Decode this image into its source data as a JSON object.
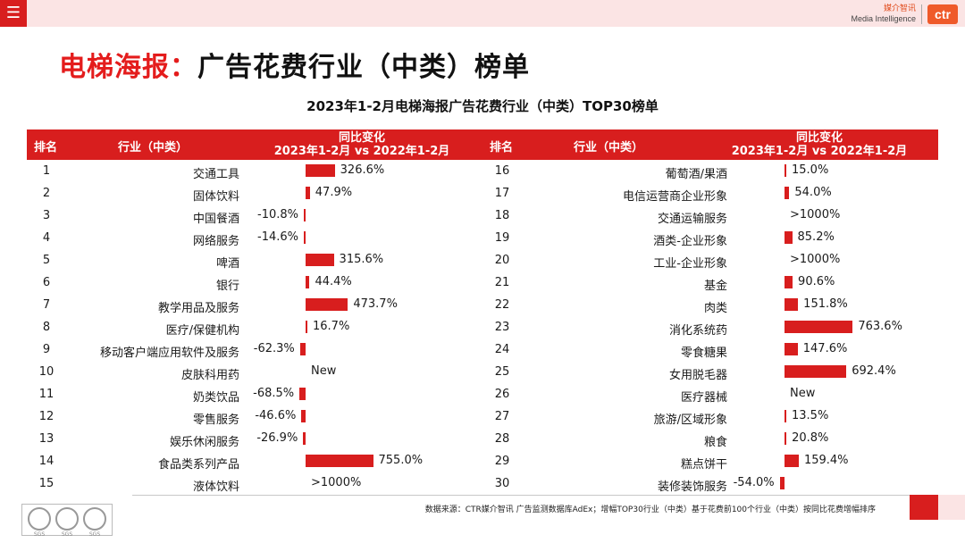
{
  "header": {
    "menu_icon": "menu-icon",
    "logo_cn": "媒介智讯",
    "logo_en": "Media Intelligence",
    "logo_mark": "ctr"
  },
  "title": {
    "red": "电梯海报：",
    "black": "广告花费行业（中类）榜单"
  },
  "table_title": "2023年1-2月电梯海报广告花费行业（中类）TOP30榜单",
  "columns": {
    "rank": "排名",
    "industry": "行业（中类）",
    "change_line1": "同比变化",
    "change_line2": "2023年1-2月 vs 2022年1-2月"
  },
  "rows": [
    {
      "rank": "1",
      "name": "交通工具",
      "label": "326.6%",
      "value": 326.6
    },
    {
      "rank": "2",
      "name": "固体饮料",
      "label": "47.9%",
      "value": 47.9
    },
    {
      "rank": "3",
      "name": "中国餐酒",
      "label": "-10.8%",
      "value": -10.8
    },
    {
      "rank": "4",
      "name": "网络服务",
      "label": "-14.6%",
      "value": -14.6
    },
    {
      "rank": "5",
      "name": "啤酒",
      "label": "315.6%",
      "value": 315.6
    },
    {
      "rank": "6",
      "name": "银行",
      "label": "44.4%",
      "value": 44.4
    },
    {
      "rank": "7",
      "name": "教学用品及服务",
      "label": "473.7%",
      "value": 473.7
    },
    {
      "rank": "8",
      "name": "医疗/保健机构",
      "label": "16.7%",
      "value": 16.7
    },
    {
      "rank": "9",
      "name": "移动客户端应用软件及服务",
      "label": "-62.3%",
      "value": -62.3
    },
    {
      "rank": "10",
      "name": "皮肤科用药",
      "label": "New",
      "value": null
    },
    {
      "rank": "11",
      "name": "奶类饮品",
      "label": "-68.5%",
      "value": -68.5
    },
    {
      "rank": "12",
      "name": "零售服务",
      "label": "-46.6%",
      "value": -46.6
    },
    {
      "rank": "13",
      "name": "娱乐休闲服务",
      "label": "-26.9%",
      "value": -26.9
    },
    {
      "rank": "14",
      "name": "食品类系列产品",
      "label": "755.0%",
      "value": 755.0
    },
    {
      "rank": "15",
      "name": "液体饮料",
      "label": ">1000%",
      "value": null
    },
    {
      "rank": "16",
      "name": "葡萄酒/果酒",
      "label": "15.0%",
      "value": 15.0
    },
    {
      "rank": "17",
      "name": "电信运营商企业形象",
      "label": "54.0%",
      "value": 54.0
    },
    {
      "rank": "18",
      "name": "交通运输服务",
      "label": ">1000%",
      "value": null
    },
    {
      "rank": "19",
      "name": "酒类-企业形象",
      "label": "85.2%",
      "value": 85.2
    },
    {
      "rank": "20",
      "name": "工业-企业形象",
      "label": ">1000%",
      "value": null
    },
    {
      "rank": "21",
      "name": "基金",
      "label": "90.6%",
      "value": 90.6
    },
    {
      "rank": "22",
      "name": "肉类",
      "label": "151.8%",
      "value": 151.8
    },
    {
      "rank": "23",
      "name": "消化系统药",
      "label": "763.6%",
      "value": 763.6
    },
    {
      "rank": "24",
      "name": "零食糖果",
      "label": "147.6%",
      "value": 147.6
    },
    {
      "rank": "25",
      "name": "女用脱毛器",
      "label": "692.4%",
      "value": 692.4
    },
    {
      "rank": "26",
      "name": "医疗器械",
      "label": "New",
      "value": null
    },
    {
      "rank": "27",
      "name": "旅游/区域形象",
      "label": "13.5%",
      "value": 13.5
    },
    {
      "rank": "28",
      "name": "粮食",
      "label": "20.8%",
      "value": 20.8
    },
    {
      "rank": "29",
      "name": "糕点饼干",
      "label": "159.4%",
      "value": 159.4
    },
    {
      "rank": "30",
      "name": "装修装饰服务",
      "label": "-54.0%",
      "value": -54.0
    }
  ],
  "footer": {
    "note": "数据来源：CTR媒介智讯 广告监测数据库AdEx；增幅TOP30行业（中类）基于花费前100个行业（中类）按同比花费增幅排序",
    "cert_label": "SGS"
  },
  "colors": {
    "accent": "#d81e1e",
    "pink": "#fbe4e4",
    "logo": "#ef5a2a"
  }
}
